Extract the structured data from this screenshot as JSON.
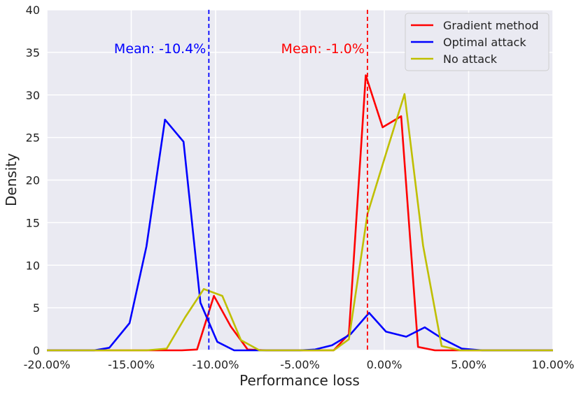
{
  "chart_data": {
    "type": "line",
    "xlabel": "Performance loss",
    "ylabel": "Density",
    "xlim": [
      -20,
      10
    ],
    "ylim": [
      0,
      40
    ],
    "x_ticks": [
      -20,
      -15,
      -10,
      -5,
      0,
      5,
      10
    ],
    "x_tick_labels": [
      "-20.00%",
      "-15.00%",
      "-10.00%",
      "-5.00%",
      "0.00%",
      "5.00%",
      "10.00%"
    ],
    "y_ticks": [
      0,
      5,
      10,
      15,
      20,
      25,
      30,
      35,
      40
    ],
    "y_tick_labels": [
      "0",
      "5",
      "10",
      "15",
      "20",
      "25",
      "30",
      "35",
      "40"
    ],
    "grid": true,
    "legend_position": "top-right",
    "series": [
      {
        "name": "Gradient method",
        "color": "#ff0000",
        "x": [
          -20,
          -17,
          -15,
          -13,
          -12,
          -11.1,
          -10.1,
          -9.1,
          -8.1,
          -7,
          -5,
          -3,
          -2.1,
          -1.1,
          -0.1,
          1.0,
          2.0,
          3.0,
          4,
          6,
          10
        ],
        "y": [
          0,
          0,
          0,
          0,
          0,
          0.1,
          6.4,
          2.8,
          0.1,
          0,
          0,
          0,
          1.9,
          32.3,
          26.2,
          27.5,
          0.4,
          0,
          0,
          0,
          0
        ]
      },
      {
        "name": "Optimal attack",
        "color": "#0000ff",
        "x": [
          -20,
          -17.2,
          -16.3,
          -15.1,
          -14.1,
          -13.0,
          -11.9,
          -10.9,
          -9.9,
          -8.9,
          -7.9,
          -7,
          -5,
          -4.1,
          -3.1,
          -2.0,
          -0.9,
          0.1,
          1.3,
          2.4,
          3.5,
          4.6,
          5.8,
          7,
          10
        ],
        "y": [
          0,
          0,
          0.3,
          3.2,
          12.2,
          27.1,
          24.5,
          5.6,
          1.0,
          0,
          0,
          0,
          0,
          0.1,
          0.6,
          1.9,
          4.4,
          2.2,
          1.6,
          2.7,
          1.3,
          0.2,
          0,
          0,
          0
        ]
      },
      {
        "name": "No attack",
        "color": "#bfbf00",
        "x": [
          -20,
          -15,
          -14.1,
          -12.9,
          -11.8,
          -10.7,
          -9.6,
          -8.5,
          -7.4,
          -6.3,
          -5.2,
          -4.1,
          -3,
          -2.1,
          -1.0,
          0.1,
          1.2,
          2.3,
          3.4,
          4.5,
          6,
          10
        ],
        "y": [
          0,
          0,
          0,
          0.2,
          3.9,
          7.2,
          6.4,
          1.2,
          0,
          0,
          0,
          0,
          0,
          1.3,
          16.0,
          23.1,
          30.1,
          12.3,
          0.5,
          0,
          0,
          0
        ]
      }
    ],
    "reference_lines": [
      {
        "x": -10.4,
        "color": "#0000ff",
        "label": "Mean: -10.4%"
      },
      {
        "x": -1.0,
        "color": "#ff0000",
        "label": "Mean: -1.0%"
      }
    ]
  }
}
